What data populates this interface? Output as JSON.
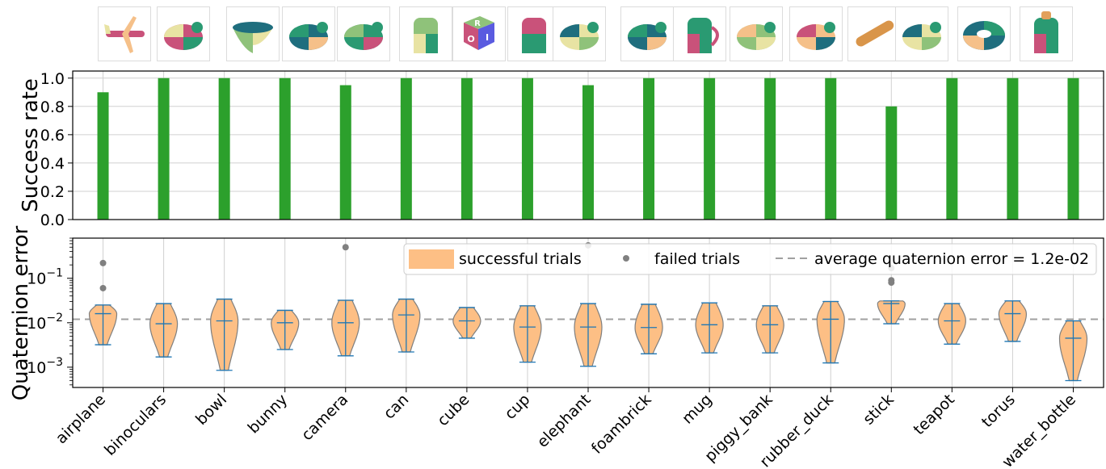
{
  "chart_data": [
    {
      "type": "bar",
      "ylabel": "Success rate",
      "ylim": [
        0,
        1.05
      ],
      "yticks": [
        "0.0",
        "0.2",
        "0.4",
        "0.6",
        "0.8",
        "1.0"
      ],
      "categories": [
        "airplane",
        "binoculars",
        "bowl",
        "bunny",
        "camera",
        "can",
        "cube",
        "cup",
        "elephant",
        "foambrick",
        "mug",
        "piggy_bank",
        "rubber_duck",
        "stick",
        "teapot",
        "torus",
        "water_bottle"
      ],
      "values": [
        0.9,
        1.0,
        1.0,
        1.0,
        0.95,
        1.0,
        1.0,
        1.0,
        0.95,
        1.0,
        1.0,
        1.0,
        1.0,
        0.8,
        1.0,
        1.0,
        1.0
      ],
      "bar_color": "#2ca02c",
      "grid": true
    },
    {
      "type": "violin",
      "ylabel": "Quaternion error",
      "yscale": "log",
      "ylim": [
        0.00035,
        0.8
      ],
      "yticks": [
        "10−3",
        "10−2",
        "10−1"
      ],
      "categories": [
        "airplane",
        "binoculars",
        "bowl",
        "bunny",
        "camera",
        "can",
        "cube",
        "cup",
        "elephant",
        "foambrick",
        "mug",
        "piggy_bank",
        "rubber_duck",
        "stick",
        "teapot",
        "torus",
        "water_bottle"
      ],
      "violins": [
        {
          "min": 0.0032,
          "median": 0.016,
          "max": 0.025
        },
        {
          "min": 0.0017,
          "median": 0.0095,
          "max": 0.027
        },
        {
          "min": 0.00085,
          "median": 0.011,
          "max": 0.034
        },
        {
          "min": 0.0025,
          "median": 0.01,
          "max": 0.019
        },
        {
          "min": 0.0018,
          "median": 0.01,
          "max": 0.032
        },
        {
          "min": 0.0022,
          "median": 0.015,
          "max": 0.034
        },
        {
          "min": 0.0045,
          "median": 0.011,
          "max": 0.022
        },
        {
          "min": 0.0013,
          "median": 0.008,
          "max": 0.024
        },
        {
          "min": 0.00105,
          "median": 0.008,
          "max": 0.027
        },
        {
          "min": 0.002,
          "median": 0.0078,
          "max": 0.026
        },
        {
          "min": 0.0021,
          "median": 0.009,
          "max": 0.028
        },
        {
          "min": 0.0021,
          "median": 0.009,
          "max": 0.024
        },
        {
          "min": 0.00125,
          "median": 0.012,
          "max": 0.03
        },
        {
          "min": 0.0095,
          "median": 0.027,
          "max": 0.031
        },
        {
          "min": 0.0033,
          "median": 0.011,
          "max": 0.027
        },
        {
          "min": 0.0038,
          "median": 0.016,
          "max": 0.031
        },
        {
          "min": 0.0005,
          "median": 0.0045,
          "max": 0.011
        }
      ],
      "failed_trials": [
        {
          "category": "airplane",
          "values": [
            0.22,
            0.06
          ]
        },
        {
          "category": "camera",
          "values": [
            0.5
          ]
        },
        {
          "category": "elephant",
          "values": [
            0.55
          ]
        },
        {
          "category": "stick",
          "values": [
            0.17,
            0.09,
            0.08
          ]
        }
      ],
      "average_line": 0.012,
      "legend": {
        "position": "top-right",
        "entries": [
          "successful trials",
          "failed trials",
          "average quaternion error = 1.2e-02"
        ]
      },
      "violin_color": "#fdbf85",
      "line_color": "#1f77b4",
      "failed_color": "#808080",
      "average_color": "#a0a0a0"
    }
  ],
  "thumbnails": [
    "airplane",
    "binoculars",
    "bowl",
    "bunny",
    "camera",
    "can",
    "cube",
    "cup",
    "elephant",
    "foambrick",
    "mug",
    "piggy_bank",
    "rubber_duck",
    "stick",
    "teapot",
    "torus",
    "water_bottle"
  ],
  "cube_letters": [
    "R",
    "O",
    "I"
  ]
}
